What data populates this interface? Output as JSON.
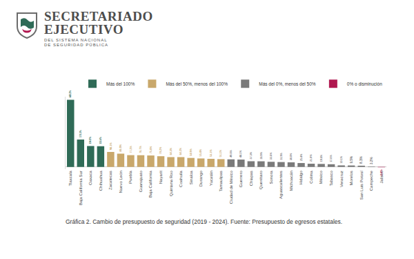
{
  "header": {
    "title": [
      "SECRETARIADO",
      "EJECUTIVO"
    ],
    "subtitle": [
      "DEL SISTEMA NACIONAL",
      "DE SEGURIDAD PÚBLICA"
    ]
  },
  "chart_data": {
    "type": "bar",
    "caption": "Gráfica 2. Cambio de presupuesto de seguridad (2019 - 2024). Fuente: Presupuesto de egresos estatales.",
    "categories": [
      "Tlaxcala",
      "Baja California Sur",
      "Oaxaca",
      "Chihuahua",
      "Zacatecas",
      "Nuevo León",
      "Puebla",
      "Guanajuato",
      "Baja California",
      "Nayarit",
      "Quintana Roo",
      "Coahuila",
      "Sinaloa",
      "Durango",
      "Yucatán",
      "Tamaulipas",
      "Ciudad de México",
      "Guerrero",
      "Chiapas",
      "Querétaro",
      "Sonora",
      "Aguascalientes",
      "Michoacán",
      "Hidalgo",
      "Colima",
      "México",
      "Tabasco",
      "Veracruz",
      "Morelos",
      "San Luis Potosí",
      "Campeche",
      "Jalisco"
    ],
    "series": [
      {
        "name": "Más del 100%",
        "color": "#2f6b57",
        "values": [
          440.2,
          179.3,
          136.9,
          135.6,
          null,
          null,
          null,
          null,
          null,
          null,
          null,
          null,
          null,
          null,
          null,
          null,
          null,
          null,
          null,
          null,
          null,
          null,
          null,
          null,
          null,
          null,
          null,
          null,
          null,
          null,
          null,
          null
        ],
        "value_labels": [
          "440.2%",
          "179.3%",
          "136.9%",
          "135.6%",
          null,
          null,
          null,
          null,
          null,
          null,
          null,
          null,
          null,
          null,
          null,
          null,
          null,
          null,
          null,
          null,
          null,
          null,
          null,
          null,
          null,
          null,
          null,
          null,
          null,
          null,
          null,
          null
        ]
      },
      {
        "name": "Más del 50%, menos del 100%",
        "color": "#c9a86b",
        "values": [
          null,
          null,
          null,
          null,
          98.1,
          86.9,
          77.2,
          76.7,
          75.0,
          70.2,
          64.3,
          64.2,
          58.9,
          55.4,
          53.1,
          51.1,
          null,
          null,
          null,
          null,
          null,
          null,
          null,
          null,
          null,
          null,
          null,
          null,
          null,
          null,
          null,
          null
        ],
        "value_labels": [
          null,
          null,
          null,
          null,
          "98.1%",
          "86.9%",
          "77.2%",
          "76.7%",
          "75.0%",
          "70.2%",
          "64.3%",
          "64.2%",
          "58.9%",
          "55.4%",
          "53.1%",
          "51.1%",
          null,
          null,
          null,
          null,
          null,
          null,
          null,
          null,
          null,
          null,
          null,
          null,
          null,
          null,
          null,
          null
        ]
      },
      {
        "name": "Más del 0%, menos del 50%",
        "color": "#7a7a7a",
        "values": [
          null,
          null,
          null,
          null,
          null,
          null,
          null,
          null,
          null,
          null,
          null,
          null,
          null,
          null,
          null,
          null,
          49.6,
          48.1,
          37.3,
          36.9,
          33.6,
          31.9,
          30.0,
          25.4,
          21.0,
          19.6,
          17.6,
          10.1,
          9.5,
          8.1,
          3.2,
          null
        ],
        "value_labels": [
          null,
          null,
          null,
          null,
          null,
          null,
          null,
          null,
          null,
          null,
          null,
          null,
          null,
          null,
          null,
          null,
          "49.6%",
          "48.1%",
          "37.3%",
          "36.9%",
          "33.6%",
          "31.9%",
          "30.0%",
          "25.4%",
          "21.0%",
          "19.6%",
          "17.6%",
          "10.1%",
          "9.5%",
          "8.1%",
          "3.2%",
          null
        ]
      },
      {
        "name": "0% o disminución",
        "color": "#b0174f",
        "values": [
          null,
          null,
          null,
          null,
          null,
          null,
          null,
          null,
          null,
          null,
          null,
          null,
          null,
          null,
          null,
          null,
          null,
          null,
          null,
          null,
          null,
          null,
          null,
          null,
          null,
          null,
          null,
          null,
          null,
          null,
          null,
          -2.4
        ],
        "value_labels": [
          null,
          null,
          null,
          null,
          null,
          null,
          null,
          null,
          null,
          null,
          null,
          null,
          null,
          null,
          null,
          null,
          null,
          null,
          null,
          null,
          null,
          null,
          null,
          null,
          null,
          null,
          null,
          null,
          null,
          null,
          null,
          "-2.4%"
        ]
      }
    ],
    "ylim": [
      -15,
      460
    ],
    "data_labels": true,
    "tick_labels": "x",
    "grid": false,
    "legend": "top right"
  }
}
